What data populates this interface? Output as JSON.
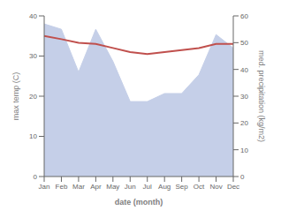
{
  "chart_data": {
    "type": "line",
    "categories": [
      "Jan",
      "Feb",
      "Mar",
      "Apr",
      "May",
      "Jun",
      "Jul",
      "Aug",
      "Sep",
      "Oct",
      "Nov",
      "Dec"
    ],
    "series": [
      {
        "type": "area",
        "color": "#c5cfe8",
        "axis": "y2",
        "values": [
          57.0,
          55.0,
          39.0,
          55.0,
          43.0,
          28.0,
          28.0,
          31.0,
          31.0,
          38.0,
          53.0,
          48.0
        ]
      },
      {
        "type": "line",
        "color": "#c0504d",
        "axis": "y",
        "values": [
          35.0,
          34.2,
          33.3,
          33.0,
          32.0,
          31.0,
          30.5,
          31.0,
          31.5,
          32.0,
          33.0,
          33.0
        ]
      }
    ],
    "xlabel": "date (month)",
    "ylabel": "max temp (C)",
    "y2label": "med. precipitation (kg/m2)",
    "ylim": [
      0,
      40
    ],
    "yticks": [
      0,
      10,
      20,
      30,
      40
    ],
    "y2lim": [
      0,
      60
    ],
    "y2ticks": [
      0,
      10,
      20,
      30,
      40,
      50,
      60
    ]
  }
}
